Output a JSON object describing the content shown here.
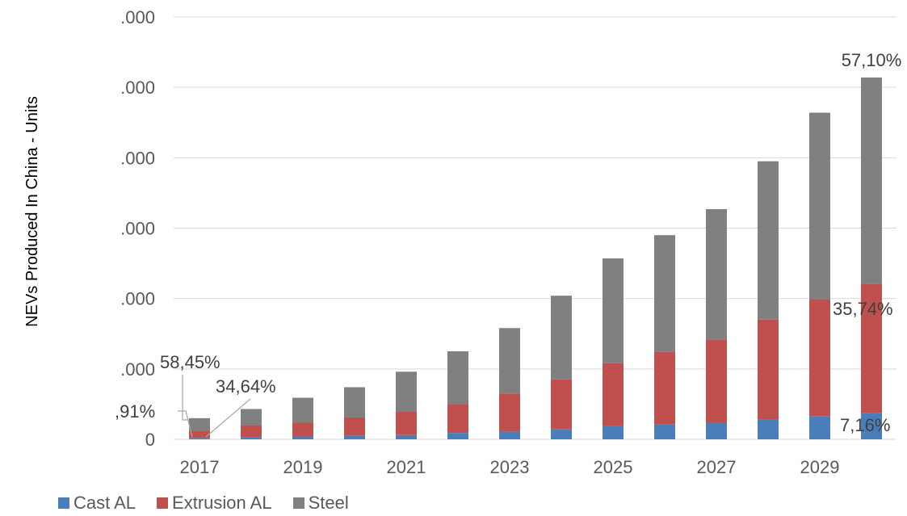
{
  "chart_data": {
    "type": "bar",
    "stacked": true,
    "ylabel": "NEVs Produced In China - Units",
    "ytick_labels": [
      "0",
      ".000",
      ".000",
      ".000",
      ".000",
      ".000",
      ".000"
    ],
    "xtick_labels": [
      "2017",
      "2019",
      "2021",
      "2023",
      "2025",
      "2027",
      "2029"
    ],
    "categories": [
      "2017",
      "2018",
      "2019",
      "2020",
      "2021",
      "2022",
      "2023",
      "2024",
      "2025",
      "2026",
      "2027",
      "2028",
      "2029",
      "2030"
    ],
    "ylim": [
      0,
      6
    ],
    "grid": true,
    "legend_position": "bottom-left",
    "series": [
      {
        "name": "Cast AL",
        "color": "#4a7ebb",
        "values": [
          0.02,
          0.03,
          0.04,
          0.05,
          0.06,
          0.09,
          0.11,
          0.14,
          0.19,
          0.21,
          0.23,
          0.28,
          0.33,
          0.37
        ]
      },
      {
        "name": "Extrusion AL",
        "color": "#c0504d",
        "values": [
          0.1,
          0.17,
          0.2,
          0.26,
          0.33,
          0.41,
          0.54,
          0.71,
          0.89,
          1.03,
          1.19,
          1.42,
          1.66,
          1.84
        ]
      },
      {
        "name": "Steel",
        "color": "#808080",
        "values": [
          0.18,
          0.23,
          0.35,
          0.43,
          0.57,
          0.75,
          0.93,
          1.19,
          1.49,
          1.66,
          1.85,
          2.25,
          2.65,
          2.93
        ]
      }
    ],
    "annotations": [
      {
        "text": "58,45%",
        "category": "2017",
        "series": "Steel"
      },
      {
        "text": "34,64%",
        "category": "2017",
        "series": "Extrusion AL"
      },
      {
        "text": ",91%",
        "category": "2017",
        "series": "Cast AL"
      },
      {
        "text": "57,10%",
        "category": "2030",
        "series": "Steel"
      },
      {
        "text": "35,74%",
        "category": "2030",
        "series": "Extrusion AL"
      },
      {
        "text": "7,16%",
        "category": "2030",
        "series": "Cast AL"
      }
    ]
  }
}
